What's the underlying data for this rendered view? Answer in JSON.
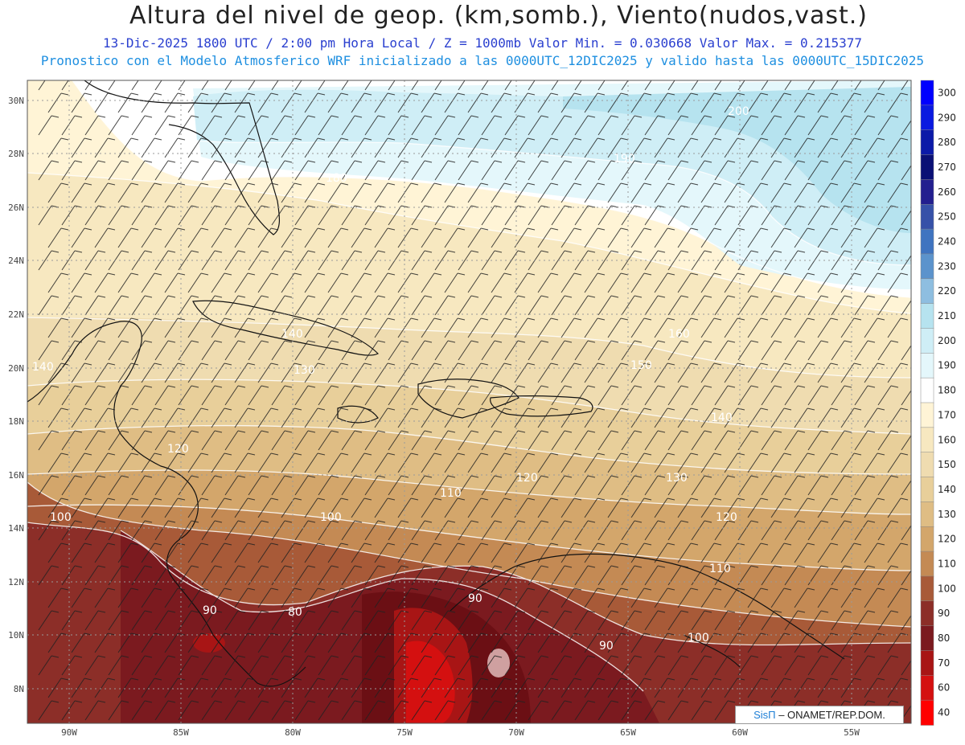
{
  "header": {
    "title": "Altura del nivel de geop. (km,somb.), Viento(nudos,vast.)",
    "subtitle": "13-Dic-2025  1800 UTC / 2:00 pm Hora Local / Z = 1000mb  Valor Min. = 0.030668  Valor Max. = 0.215377",
    "model_line": "Pronostico con el Modelo Atmosferico WRF inicializado a las 0000UTC_12DIC2025 y valido hasta las  0000UTC_15DIC2025"
  },
  "map": {
    "lon_labels": [
      "90W",
      "85W",
      "80W",
      "75W",
      "70W",
      "65W",
      "60W",
      "55W"
    ],
    "lat_labels": [
      "30N",
      "28N",
      "26N",
      "24N",
      "22N",
      "20N",
      "18N",
      "16N",
      "14N",
      "12N",
      "10N",
      "8N"
    ],
    "contour_labels": [
      "200",
      "190",
      "180",
      "160",
      "150",
      "140",
      "140",
      "140",
      "130",
      "130",
      "120",
      "120",
      "120",
      "110",
      "110",
      "100",
      "100",
      "100",
      "90",
      "90",
      "90",
      "80"
    ]
  },
  "colorbar": {
    "levels": [
      "300",
      "290",
      "280",
      "270",
      "260",
      "250",
      "240",
      "230",
      "220",
      "210",
      "200",
      "190",
      "180",
      "170",
      "160",
      "150",
      "140",
      "130",
      "120",
      "110",
      "100",
      "90",
      "80",
      "70",
      "60",
      "40"
    ],
    "colors": [
      "#0000ff",
      "#0a1ae0",
      "#0b1aa8",
      "#0a1075",
      "#231f8f",
      "#3651a8",
      "#3f74c0",
      "#5b93cc",
      "#8ebee0",
      "#b6e3ef",
      "#cfeef6",
      "#e4f7fb",
      "#ffffff",
      "#fff4d6",
      "#f7e8c0",
      "#efdcb0",
      "#e8cf9a",
      "#dfbd84",
      "#d3a66b",
      "#c48a54",
      "#a85a38",
      "#8c2e28",
      "#7b1a1f",
      "#a81515",
      "#d41010",
      "#ff0000"
    ]
  },
  "credit": {
    "brand": "SisΠ",
    "text": " –  ONAMET/REP.DOM."
  }
}
